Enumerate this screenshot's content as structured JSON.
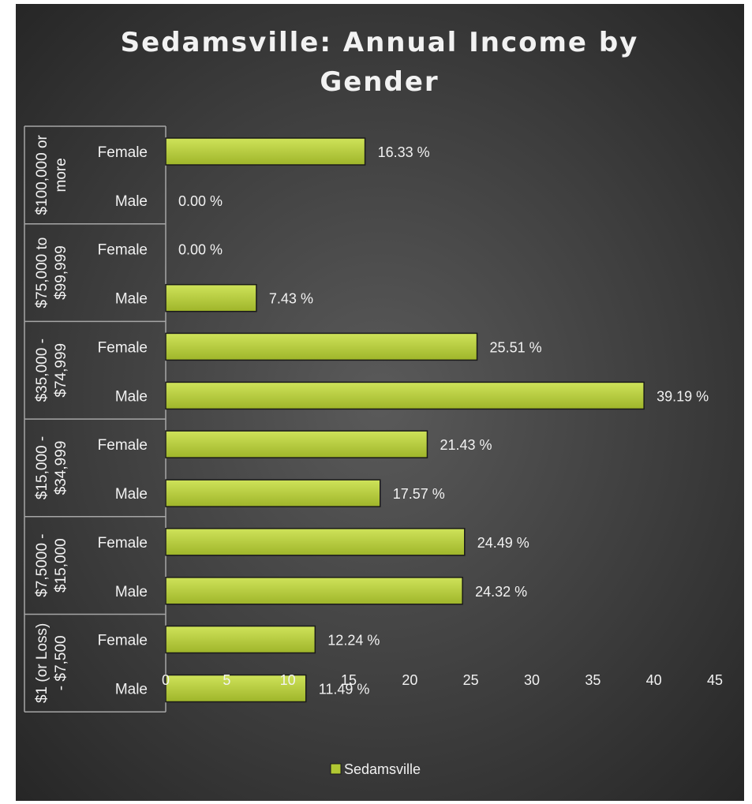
{
  "chart_data": {
    "type": "bar",
    "orientation": "horizontal",
    "title": "Sedamsville: Annual Income by Gender",
    "groups": [
      {
        "label": "$100,000 or more",
        "label_lines": [
          "$100,000 or",
          "more"
        ],
        "categories": [
          "Female",
          "Male"
        ],
        "values": [
          16.33,
          0.0
        ],
        "labels": [
          "16.33 %",
          "0.00 %"
        ]
      },
      {
        "label": "$75,000 to $99,999",
        "label_lines": [
          "$75,000 to",
          "$99,999"
        ],
        "categories": [
          "Female",
          "Male"
        ],
        "values": [
          0.0,
          7.43
        ],
        "labels": [
          "0.00 %",
          "7.43 %"
        ]
      },
      {
        "label": "$35,000 - $74,999",
        "label_lines": [
          "$35,000 -",
          "$74,999"
        ],
        "categories": [
          "Female",
          "Male"
        ],
        "values": [
          25.51,
          39.19
        ],
        "labels": [
          "25.51 %",
          "39.19 %"
        ]
      },
      {
        "label": "$15,000 - $34,999",
        "label_lines": [
          "$15,000 -",
          "$34,999"
        ],
        "categories": [
          "Female",
          "Male"
        ],
        "values": [
          21.43,
          17.57
        ],
        "labels": [
          "21.43 %",
          "17.57 %"
        ]
      },
      {
        "label": "$7,5000 - $15,000",
        "label_lines": [
          "$7,5000 -",
          "$15,000"
        ],
        "categories": [
          "Female",
          "Male"
        ],
        "values": [
          24.49,
          24.32
        ],
        "labels": [
          "24.49 %",
          "24.32 %"
        ]
      },
      {
        "label": "$1 (or Loss) - $7,500",
        "label_lines": [
          "$1 (or Loss)",
          "- $7,500"
        ],
        "categories": [
          "Female",
          "Male"
        ],
        "values": [
          12.24,
          11.49
        ],
        "labels": [
          "12.24 %",
          "11.49 %"
        ]
      }
    ],
    "series": [
      {
        "name": "Sedamsville"
      }
    ],
    "xlim": [
      0,
      45
    ],
    "xticks": [
      0,
      5,
      10,
      15,
      20,
      25,
      30,
      35,
      40,
      45
    ],
    "xtick_labels": [
      "0",
      "5",
      "10",
      "15",
      "20",
      "25",
      "30",
      "35",
      "40",
      "45"
    ],
    "legend_position": "bottom",
    "grid": false,
    "colors": {
      "bar": "#b2c933",
      "bar_highlight": "#c6dc4a",
      "bar_edge": "#1a1a1a",
      "background": "#404040",
      "text": "#f2f2f2",
      "axis": "#a6a6a6"
    }
  }
}
